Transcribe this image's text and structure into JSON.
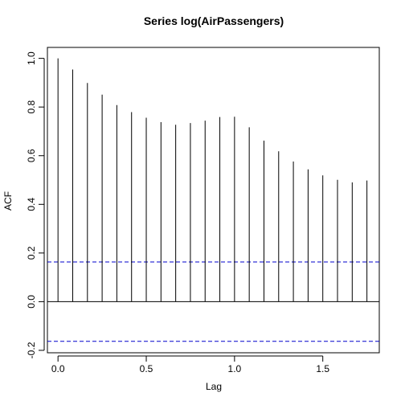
{
  "chart_data": {
    "type": "bar",
    "title": "Series  log(AirPassengers)",
    "xlabel": "Lag",
    "ylabel": "ACF",
    "xlim": [
      -0.06,
      1.82
    ],
    "ylim": [
      -0.21,
      1.045
    ],
    "xticks": [
      0.0,
      0.5,
      1.0,
      1.5
    ],
    "xtick_labels": [
      "0.0",
      "0.5",
      "1.0",
      "1.5"
    ],
    "yticks": [
      -0.2,
      0.0,
      0.2,
      0.4,
      0.6,
      0.8,
      1.0
    ],
    "ytick_labels": [
      "-0.2",
      "0.0",
      "0.2",
      "0.4",
      "0.6",
      "0.8",
      "1.0"
    ],
    "lags": [
      0.0,
      0.0833,
      0.1667,
      0.25,
      0.3333,
      0.4167,
      0.5,
      0.5833,
      0.6667,
      0.75,
      0.8333,
      0.9167,
      1.0,
      1.0833,
      1.1667,
      1.25,
      1.3333,
      1.4167,
      1.5,
      1.5833,
      1.6667,
      1.75
    ],
    "acf": [
      1.0,
      0.954,
      0.899,
      0.851,
      0.808,
      0.779,
      0.756,
      0.738,
      0.727,
      0.734,
      0.744,
      0.759,
      0.76,
      0.717,
      0.662,
      0.618,
      0.576,
      0.544,
      0.519,
      0.501,
      0.49,
      0.498
    ],
    "ci_bounds": [
      0.163,
      -0.163
    ],
    "zero_line": 0,
    "colors": {
      "spike": "#000000",
      "ci_line": "#0000cc",
      "zero_line": "#000000"
    },
    "grid": false
  }
}
